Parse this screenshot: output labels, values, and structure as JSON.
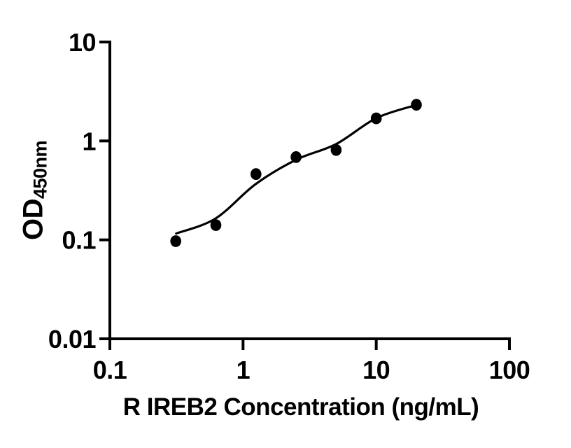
{
  "figure": {
    "background": "#ffffff",
    "foreground": "#000000"
  },
  "chart_data": {
    "type": "scatter",
    "title": "",
    "xlabel": "R IREB2 Concentration (ng/mL)",
    "ylabel": "OD",
    "ylabel_subscript": "450nm",
    "x_scale": "log",
    "y_scale": "log",
    "xlim": [
      0.1,
      100
    ],
    "ylim": [
      0.01,
      10
    ],
    "x_ticks": [
      "0.1",
      "1",
      "10",
      "100"
    ],
    "y_ticks": [
      "0.01",
      "0.1",
      "1",
      "10"
    ],
    "grid": false,
    "legend_position": "none",
    "marker_color": "#000000",
    "line_color": "#000000",
    "points": [
      [
        0.3125,
        0.097
      ],
      [
        0.625,
        0.141
      ],
      [
        1.25,
        0.462
      ],
      [
        2.5,
        0.687
      ],
      [
        5,
        0.81
      ],
      [
        10,
        1.69
      ],
      [
        20,
        2.32
      ]
    ],
    "fit_curve": [
      [
        0.315,
        0.116
      ],
      [
        0.62,
        0.164
      ],
      [
        1.24,
        0.365
      ],
      [
        2.5,
        0.645
      ],
      [
        5.0,
        0.93
      ],
      [
        10.0,
        1.7
      ],
      [
        20.0,
        2.31
      ]
    ]
  }
}
